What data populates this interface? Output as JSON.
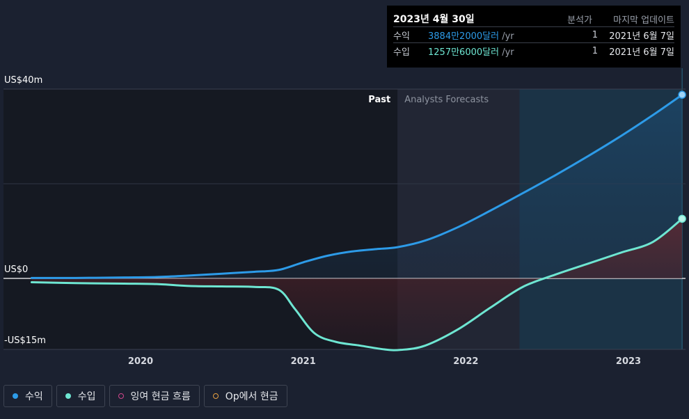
{
  "tooltip": {
    "date": "2023년 4월 30일",
    "col_analysts": "분석가",
    "col_updated": "마지막 업데이트",
    "rows": [
      {
        "label": "수익",
        "value": "3884만2000달러",
        "unit": " /yr",
        "analysts": "1",
        "updated": "2021년 6월 7일",
        "color": "#2d9be8"
      },
      {
        "label": "수입",
        "value": "1257만6000달러",
        "unit": " /yr",
        "analysts": "1",
        "updated": "2021년 6월 7일",
        "color": "#6ee6d2"
      }
    ]
  },
  "legend": [
    {
      "label": "수익",
      "color": "#2d9be8",
      "filled": true
    },
    {
      "label": "수입",
      "color": "#6ee6d2",
      "filled": true
    },
    {
      "label": "잉여 현금 흐름",
      "color": "#d0468c",
      "filled": false
    },
    {
      "label": "Op에서 현금",
      "color": "#e8a040",
      "filled": false
    }
  ],
  "chart_data": {
    "type": "line",
    "y_tick_labels": [
      "US$40m",
      "US$0",
      "-US$15m"
    ],
    "y_ticks": [
      40,
      0,
      -15
    ],
    "ylim": [
      -15,
      40
    ],
    "x_tick_labels": [
      "2020",
      "2021",
      "2022",
      "2023"
    ],
    "x_ticks": [
      2020.0,
      2021.0,
      2022.0,
      2023.0
    ],
    "xlim": [
      2019.15,
      2023.35
    ],
    "past_label": "Past",
    "forecast_label": "Analysts Forecasts",
    "past_end": 2021.58,
    "forecast_highlight_start": 2022.33,
    "forecast_highlight_end": 2023.33,
    "grid": true,
    "legend_position": "bottom-left",
    "series": [
      {
        "name": "수익",
        "color": "#2d9be8",
        "x": [
          2019.33,
          2019.6,
          2019.9,
          2020.1,
          2020.3,
          2020.5,
          2020.7,
          2020.85,
          2021.0,
          2021.15,
          2021.3,
          2021.45,
          2021.58,
          2021.75,
          2021.95,
          2022.15,
          2022.35,
          2022.55,
          2022.75,
          2022.95,
          2023.15,
          2023.33
        ],
        "y": [
          0.1,
          0.1,
          0.2,
          0.3,
          0.6,
          1.0,
          1.4,
          1.8,
          3.4,
          4.8,
          5.7,
          6.2,
          6.6,
          8.0,
          10.8,
          14.3,
          18.0,
          21.8,
          25.8,
          30.0,
          34.5,
          38.8
        ]
      },
      {
        "name": "수입",
        "color": "#6ee6d2",
        "x": [
          2019.33,
          2019.6,
          2019.9,
          2020.1,
          2020.3,
          2020.5,
          2020.7,
          2020.85,
          2020.95,
          2021.07,
          2021.2,
          2021.35,
          2021.5,
          2021.6,
          2021.75,
          2021.95,
          2022.15,
          2022.35,
          2022.55,
          2022.75,
          2022.95,
          2023.15,
          2023.33
        ],
        "y": [
          -0.8,
          -1.0,
          -1.1,
          -1.2,
          -1.6,
          -1.7,
          -1.8,
          -2.4,
          -6.5,
          -11.6,
          -13.4,
          -14.2,
          -15.0,
          -15.1,
          -14.2,
          -10.8,
          -6.2,
          -1.8,
          0.8,
          3.1,
          5.4,
          7.7,
          12.6
        ]
      }
    ]
  }
}
